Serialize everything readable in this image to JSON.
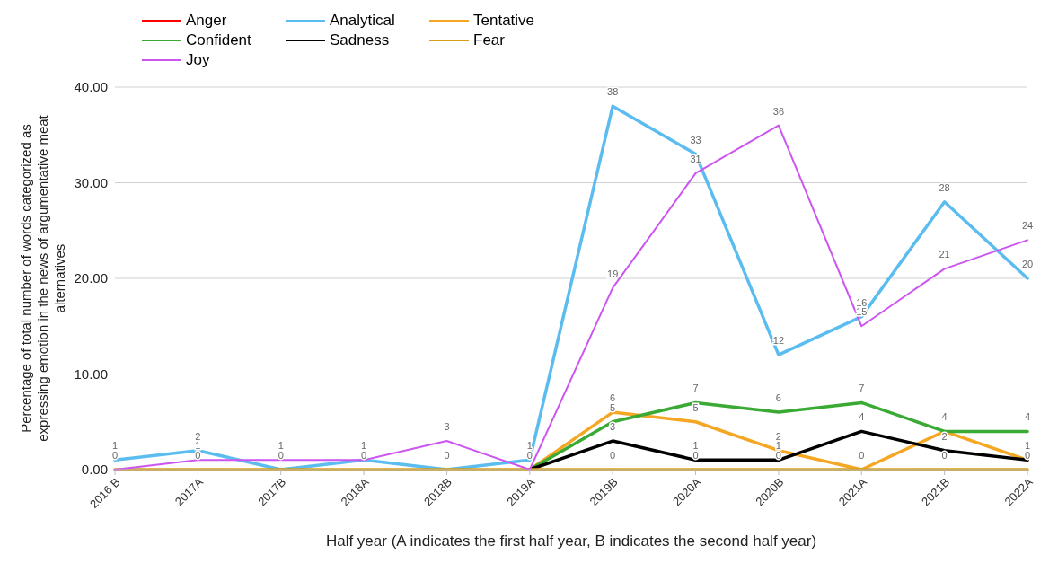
{
  "chart_data": {
    "type": "line",
    "xlabel": "Half year (A indicates the first half year, B indicates the second half year)",
    "ylabel": "Percentage of total number of words categorized as expressing emotion in the news of argumentative meat alternatives",
    "categories": [
      "2016 B",
      "2017A",
      "2017B",
      "2018A",
      "2018B",
      "2019A",
      "2019B",
      "2020A",
      "2020B",
      "2021A",
      "2021B",
      "2022A"
    ],
    "series": [
      {
        "name": "Anger",
        "color": "#ff0000",
        "values": [
          null,
          null,
          null,
          null,
          null,
          null,
          null,
          null,
          null,
          null,
          null,
          null
        ],
        "value_labels": [
          null,
          null,
          null,
          null,
          null,
          null,
          null,
          null,
          null,
          null,
          null,
          null
        ]
      },
      {
        "name": "Analytical",
        "color": "#5bbcef",
        "values": [
          1,
          2,
          0,
          1,
          0,
          1,
          38,
          33,
          12,
          16,
          28,
          20
        ],
        "value_labels": [
          "1",
          "2",
          null,
          null,
          null,
          "1",
          "38",
          "33",
          "12",
          "16",
          "28",
          "20"
        ]
      },
      {
        "name": "Tentative",
        "color": "#f5a623",
        "values": [
          null,
          null,
          null,
          null,
          null,
          0,
          6,
          5,
          2,
          0,
          4,
          1
        ],
        "value_labels": [
          null,
          null,
          null,
          null,
          null,
          null,
          "6",
          "5",
          "2",
          null,
          null,
          null
        ]
      },
      {
        "name": "Confident",
        "color": "#3aaa35",
        "values": [
          null,
          null,
          null,
          null,
          null,
          0,
          5,
          7,
          6,
          7,
          4,
          4
        ],
        "value_labels": [
          null,
          null,
          null,
          null,
          null,
          null,
          "5",
          "7",
          "6",
          "7",
          "4",
          "4"
        ]
      },
      {
        "name": "Sadness",
        "color": "#000000",
        "values": [
          null,
          null,
          null,
          null,
          null,
          0,
          3,
          1,
          1,
          4,
          2,
          1
        ],
        "value_labels": [
          null,
          null,
          null,
          null,
          null,
          null,
          "3",
          "1",
          "1",
          "4",
          "2",
          "1"
        ]
      },
      {
        "name": "Fear",
        "color": "#d4a017",
        "values": [
          0,
          0,
          0,
          0,
          0,
          0,
          0,
          0,
          0,
          0,
          0,
          0
        ],
        "value_labels": [
          "0",
          "0",
          "0",
          "0",
          "0",
          "0",
          "0",
          "0",
          "0",
          "0",
          "0",
          "0"
        ]
      },
      {
        "name": "Joy",
        "color": "#cc55f0",
        "values": [
          0,
          1,
          1,
          1,
          3,
          0,
          19,
          31,
          36,
          15,
          21,
          24
        ],
        "value_labels": [
          null,
          "1",
          "1",
          "1",
          "3",
          null,
          "19",
          "31",
          "36",
          "15",
          "21",
          "24"
        ]
      }
    ],
    "ylim": [
      0,
      40
    ],
    "yticks": [
      {
        "value": 0,
        "label": "0.00"
      },
      {
        "value": 10,
        "label": "10.00"
      },
      {
        "value": 20,
        "label": "20.00"
      },
      {
        "value": 30,
        "label": "30.00"
      },
      {
        "value": 40,
        "label": "40.00"
      }
    ],
    "grid": "y",
    "legend": "top left",
    "marker": "none",
    "line_style": "solid"
  }
}
